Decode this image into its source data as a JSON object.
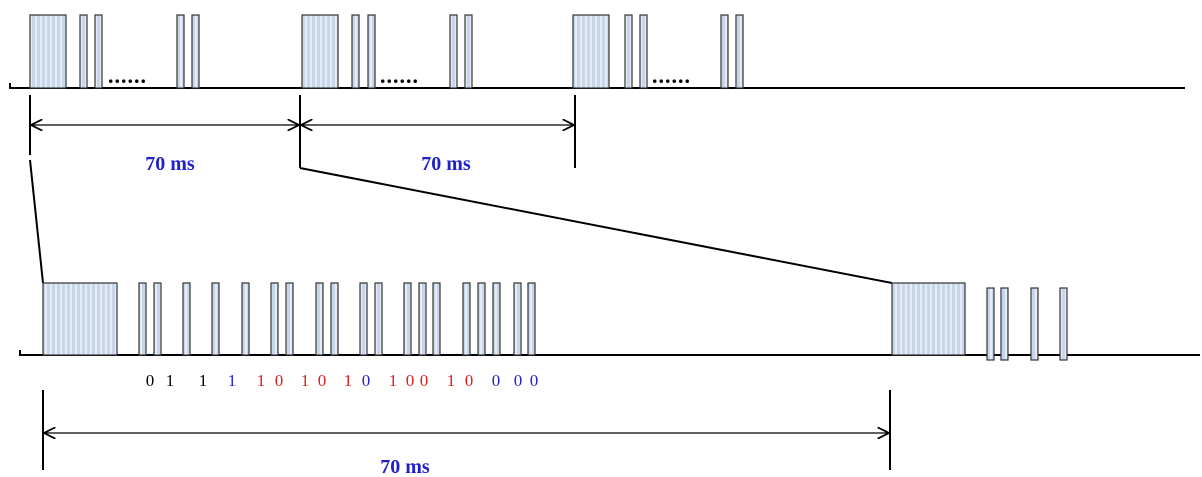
{
  "top_timeline": {
    "ellipses": [
      "......",
      "......",
      "......"
    ],
    "intervals": [
      "70 ms",
      "70 ms"
    ]
  },
  "bottom_timeline": {
    "interval": "70 ms",
    "bits": [
      {
        "text": "0",
        "color": "#000000"
      },
      {
        "text": "1",
        "color": "#000000"
      },
      {
        "text": "1",
        "color": "#000000"
      },
      {
        "text": "1",
        "color": "#1f1fcc"
      },
      {
        "text": "1",
        "color": "#e01b1b"
      },
      {
        "text": "0",
        "color": "#e01b1b"
      },
      {
        "text": "1",
        "color": "#e01b1b"
      },
      {
        "text": "0",
        "color": "#e01b1b"
      },
      {
        "text": "1",
        "color": "#e01b1b"
      },
      {
        "text": "0",
        "color": "#1f1fcc"
      },
      {
        "text": "1",
        "color": "#e01b1b"
      },
      {
        "text": "0",
        "color": "#e01b1b"
      },
      {
        "text": "0",
        "color": "#e01b1b"
      },
      {
        "text": "1",
        "color": "#e01b1b"
      },
      {
        "text": "0",
        "color": "#e01b1b"
      },
      {
        "text": "0",
        "color": "#1f1fcc"
      },
      {
        "text": "0",
        "color": "#1f1fcc"
      },
      {
        "text": "0",
        "color": "#1f1fcc"
      }
    ]
  }
}
